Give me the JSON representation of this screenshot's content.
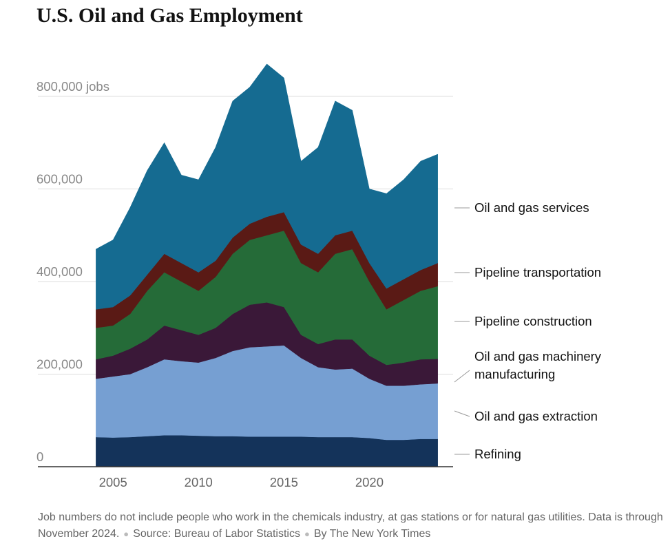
{
  "chart_data": {
    "type": "stacked-area",
    "title": "U.S. Oil and Gas Employment",
    "x": [
      2004,
      2005,
      2006,
      2007,
      2008,
      2009,
      2010,
      2011,
      2012,
      2013,
      2014,
      2015,
      2016,
      2017,
      2018,
      2019,
      2020,
      2021,
      2022,
      2023,
      2024
    ],
    "xlim": [
      2000.6,
      2024.9
    ],
    "xticks": [
      2005,
      2010,
      2015,
      2020
    ],
    "ylim": [
      0,
      900000
    ],
    "yticks": [
      0,
      {
        "value": 200000,
        "label": "200,000"
      },
      {
        "value": 400000,
        "label": "400,000"
      },
      {
        "value": 600000,
        "label": "600,000"
      },
      {
        "value": 800000,
        "label": "800,000 jobs"
      }
    ],
    "grid": true,
    "series": [
      {
        "name": "Refining",
        "color": "#14335a",
        "values": [
          64000,
          63000,
          64000,
          66000,
          68000,
          68000,
          67000,
          66000,
          66000,
          65000,
          65000,
          65000,
          65000,
          64000,
          64000,
          64000,
          62000,
          58000,
          58000,
          60000,
          60000
        ]
      },
      {
        "name": "Oil and gas extraction",
        "color": "#769fd2",
        "values": [
          126000,
          132000,
          136000,
          149000,
          164000,
          160000,
          158000,
          169000,
          184000,
          193000,
          195000,
          197000,
          170000,
          151000,
          146000,
          148000,
          128000,
          117000,
          117000,
          118000,
          120000
        ]
      },
      {
        "name": "Oil and gas machinery manufacturing",
        "color": "#3a1838",
        "values": [
          42000,
          45000,
          55000,
          60000,
          73000,
          67000,
          60000,
          65000,
          80000,
          92000,
          95000,
          83000,
          50000,
          50000,
          65000,
          63000,
          50000,
          45000,
          50000,
          54000,
          53000
        ]
      },
      {
        "name": "Pipeline construction",
        "color": "#256b38",
        "values": [
          68000,
          65000,
          75000,
          105000,
          115000,
          105000,
          95000,
          110000,
          130000,
          140000,
          145000,
          165000,
          155000,
          155000,
          185000,
          195000,
          160000,
          120000,
          135000,
          148000,
          157000
        ]
      },
      {
        "name": "Pipeline transportation",
        "color": "#5a1a15",
        "values": [
          40000,
          40000,
          40000,
          35000,
          40000,
          40000,
          40000,
          35000,
          35000,
          35000,
          40000,
          40000,
          40000,
          40000,
          40000,
          40000,
          40000,
          45000,
          45000,
          45000,
          50000
        ]
      },
      {
        "name": "Oil and gas services",
        "color": "#156b91",
        "values": [
          130000,
          145000,
          190000,
          225000,
          240000,
          190000,
          200000,
          245000,
          295000,
          295000,
          330000,
          290000,
          180000,
          230000,
          290000,
          260000,
          160000,
          205000,
          215000,
          235000,
          235000
        ]
      }
    ],
    "note": "Job numbers do not include people who work in the chemicals industry, at gas stations or for natural gas utilities. Data is through November 2024.",
    "source": "Source: Bureau of Labor Statistics",
    "credit": "By The New York Times"
  }
}
